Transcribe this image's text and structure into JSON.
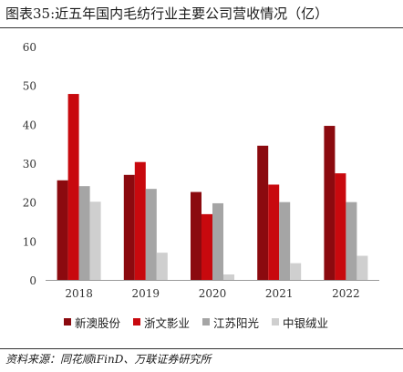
{
  "title": "图表35:近五年国内毛纺行业主要公司营收情况（亿）",
  "source": "资料来源：同花顺iFinD、万联证券研究所",
  "chart_data": {
    "type": "bar",
    "categories": [
      "2018",
      "2019",
      "2020",
      "2021",
      "2022"
    ],
    "series": [
      {
        "name": "新澳股份",
        "color": "#8b0a0f",
        "values": [
          25.6,
          27.0,
          22.6,
          34.5,
          39.6
        ]
      },
      {
        "name": "浙文影业",
        "color": "#c8090e",
        "values": [
          47.8,
          30.3,
          16.9,
          24.5,
          27.4
        ]
      },
      {
        "name": "江苏阳光",
        "color": "#a5a5a5",
        "values": [
          24.1,
          23.4,
          19.7,
          20.0,
          20.0
        ]
      },
      {
        "name": "中银绒业",
        "color": "#cfcfcf",
        "values": [
          20.1,
          7.0,
          1.4,
          4.3,
          6.2
        ]
      }
    ],
    "yticks": [
      0,
      10,
      20,
      30,
      40,
      50,
      60
    ],
    "ylim": [
      0,
      60
    ],
    "grid": false,
    "legend_position": "bottom"
  }
}
